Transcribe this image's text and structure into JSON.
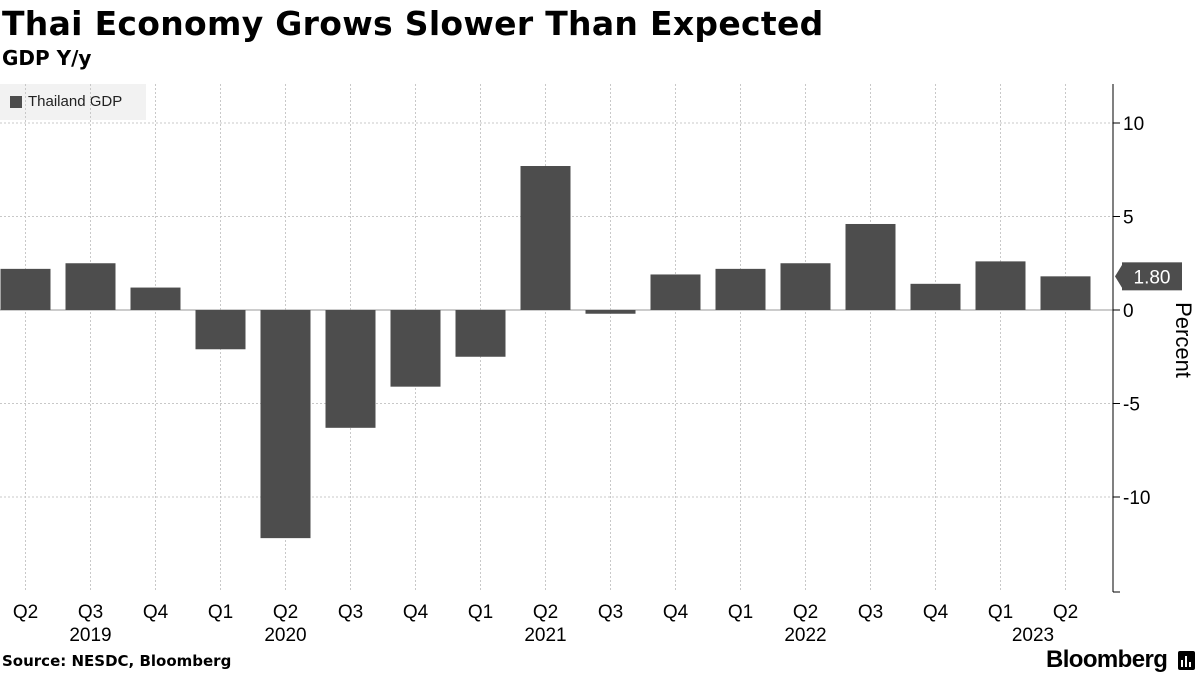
{
  "header": {
    "title": "Thai Economy Grows Slower Than Expected",
    "subtitle": "GDP Y/y"
  },
  "footer": {
    "source": "Source: NESDC, Bloomberg",
    "brand": "Bloomberg"
  },
  "colors": {
    "bar": "#4d4d4d",
    "grid": "#c8c8c8",
    "last_value_box": "#4d4d4d",
    "last_value_text": "#ffffff"
  },
  "chart_data": {
    "type": "bar",
    "title": "Thai Economy Grows Slower Than Expected",
    "subtitle": "GDP Y/y",
    "ylabel": "Percent",
    "xlabel": "",
    "ylim": [
      -15,
      12.5
    ],
    "yticks": [
      10,
      5,
      0,
      -5,
      -10
    ],
    "ytick_labels": [
      "10",
      "5",
      "0",
      "-5",
      "-10"
    ],
    "grid": true,
    "legend": {
      "position": "top-left",
      "entries": [
        "Thailand GDP"
      ]
    },
    "categories": [
      "Q2",
      "Q3",
      "Q4",
      "Q1",
      "Q2",
      "Q3",
      "Q4",
      "Q1",
      "Q2",
      "Q3",
      "Q4",
      "Q1",
      "Q2",
      "Q3",
      "Q4",
      "Q1",
      "Q2"
    ],
    "year_labels": [
      {
        "label": "2019",
        "index": 1
      },
      {
        "label": "2020",
        "index": 4
      },
      {
        "label": "2021",
        "index": 8
      },
      {
        "label": "2022",
        "index": 12
      },
      {
        "label": "2023",
        "index": 15.5
      }
    ],
    "series": [
      {
        "name": "Thailand GDP",
        "values": [
          2.2,
          2.5,
          1.2,
          -2.1,
          -12.2,
          -6.3,
          -4.1,
          -2.5,
          7.7,
          -0.2,
          1.9,
          2.2,
          2.5,
          4.6,
          1.4,
          2.6,
          1.8
        ]
      }
    ],
    "last_value_label": "1.80"
  }
}
